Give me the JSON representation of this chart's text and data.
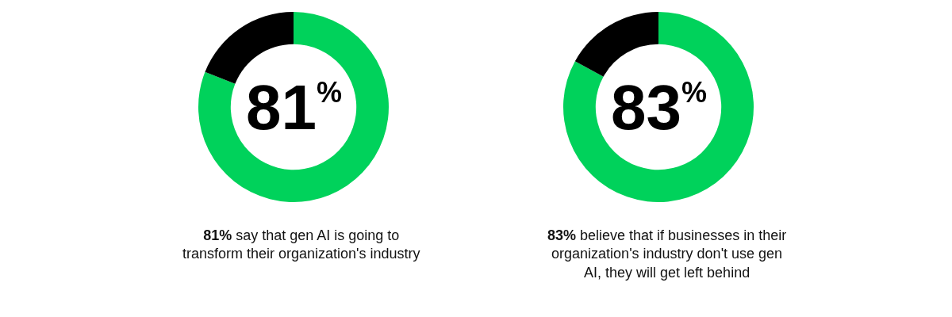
{
  "chart_data": [
    {
      "type": "donut",
      "categories": [
        null,
        null
      ],
      "values": [
        81,
        19
      ],
      "colors": [
        "#00d25b",
        "#000000"
      ],
      "value_labels": [
        "81$^{%}$",
        null
      ],
      "annotations": [
        "81% say that gen AI is going to transform their organization's industry"
      ]
    },
    {
      "type": "donut",
      "categories": [
        null,
        null
      ],
      "values": [
        83,
        17
      ],
      "colors": [
        "#00d25b",
        "#000000"
      ],
      "value_labels": [
        "83$^{%}$",
        null
      ],
      "annotations": [
        "83% believe that if businesses in their organization's industry don't use gen AI, they will get left behind"
      ]
    }
  ]
}
